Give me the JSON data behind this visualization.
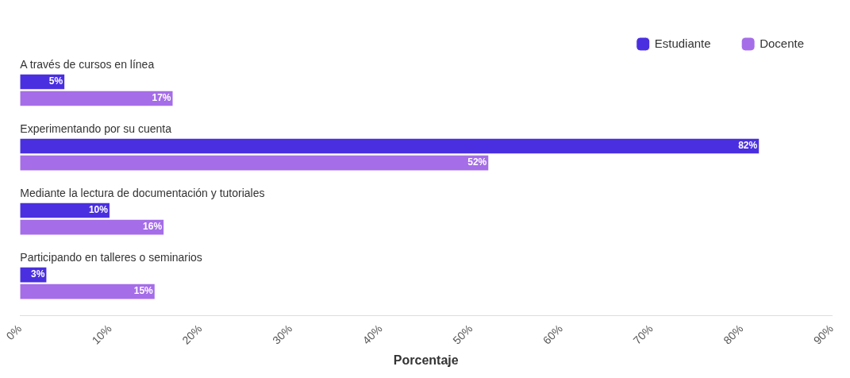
{
  "chart_data": {
    "type": "bar",
    "orientation": "horizontal",
    "xlabel": "Porcentaje",
    "legend": "top right",
    "categories": [
      "A través de cursos en línea",
      "Experimentando por su cuenta",
      "Mediante la lectura de documentación y tutoriales",
      "Participando en talleres o seminarios"
    ],
    "series": [
      {
        "name": "Estudiante",
        "color": "#4a2fe0",
        "values": [
          5,
          82,
          10,
          3
        ],
        "value_labels": [
          "5%",
          "82%",
          "10%",
          "3%"
        ]
      },
      {
        "name": "Docente",
        "color": "#a56de8",
        "values": [
          17,
          52,
          16,
          15
        ],
        "value_labels": [
          "17%",
          "52%",
          "16%",
          "15%"
        ]
      }
    ],
    "xlim": [
      0,
      90
    ],
    "xticks": [
      {
        "value": 0,
        "label": "0%"
      },
      {
        "value": 10,
        "label": "10%"
      },
      {
        "value": 20,
        "label": "20%"
      },
      {
        "value": 30,
        "label": "30%"
      },
      {
        "value": 40,
        "label": "40%"
      },
      {
        "value": 50,
        "label": "50%"
      },
      {
        "value": 60,
        "label": "60%"
      },
      {
        "value": 70,
        "label": "70%"
      },
      {
        "value": 80,
        "label": "80%"
      },
      {
        "value": 90,
        "label": "90%"
      }
    ]
  }
}
